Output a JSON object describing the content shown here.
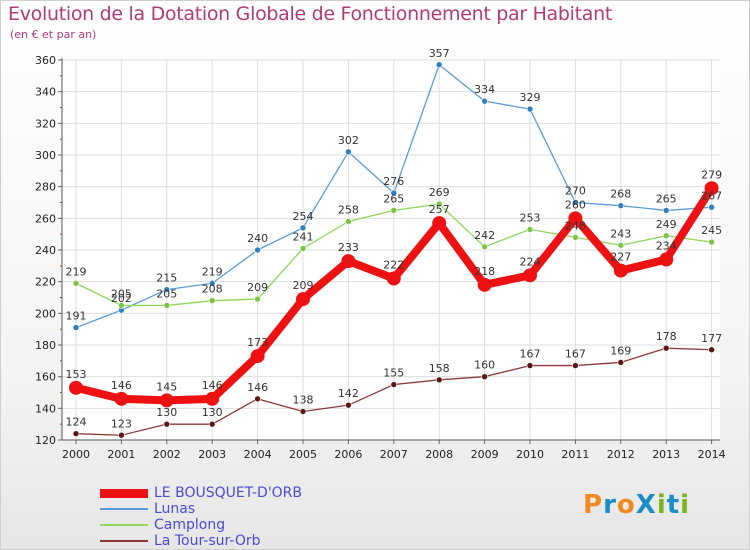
{
  "title": "Evolution de la Dotation Globale de Fonctionnement par Habitant",
  "subtitle": "(en € et par an)",
  "logo": {
    "text": "ProXiti",
    "letters": [
      "P",
      "r",
      "o",
      "X",
      "i",
      "t",
      "i"
    ],
    "colors": [
      "#f08a1e",
      "#1a8cc8",
      "#f08a1e",
      "#1a8cc8",
      "#7ab51d",
      "#1a8cc8",
      "#7ab51d"
    ]
  },
  "chart_data": {
    "type": "line",
    "title": "Evolution de la Dotation Globale de Fonctionnement par Habitant",
    "subtitle": "(en € et par an)",
    "xlabel": "",
    "ylabel": "",
    "x": [
      "2000",
      "2001",
      "2002",
      "2003",
      "2004",
      "2005",
      "2006",
      "2007",
      "2008",
      "2009",
      "2010",
      "2011",
      "2012",
      "2013",
      "2014"
    ],
    "ylim": [
      120,
      360
    ],
    "yticks": [
      120,
      140,
      160,
      180,
      200,
      220,
      240,
      260,
      280,
      300,
      320,
      340,
      360
    ],
    "grid": true,
    "legend_position": "bottom-left",
    "series": [
      {
        "name": "Lunas",
        "color": "#5b9bd5",
        "point_color": "#2f7fc1",
        "values": [
          191,
          202,
          215,
          219,
          240,
          254,
          302,
          276,
          357,
          334,
          329,
          270,
          268,
          265,
          267
        ],
        "labels": [
          "191",
          "202",
          "215",
          "219",
          "240",
          "254",
          "302",
          "276",
          "357",
          "334",
          "329",
          "270",
          "268",
          "265",
          "267"
        ]
      },
      {
        "name": "Camplong",
        "color": "#8ed65a",
        "point_color": "#7cc442",
        "values": [
          219,
          205,
          205,
          208,
          209,
          241,
          258,
          265,
          269,
          242,
          253,
          248,
          243,
          249,
          245
        ],
        "labels": [
          "219",
          "205",
          "205",
          "208",
          "209",
          "241",
          "258",
          "265",
          "269",
          "242",
          "253",
          "248",
          "243",
          "249",
          "245"
        ]
      },
      {
        "name": "La Tour-sur-Orb",
        "color": "#8b3a3a",
        "point_color": "#5a1515",
        "values": [
          124,
          123,
          130,
          130,
          146,
          138,
          142,
          155,
          158,
          160,
          167,
          167,
          169,
          178,
          177
        ],
        "labels": [
          "124",
          "123",
          "130",
          "130",
          "146",
          "138",
          "142",
          "155",
          "158",
          "160",
          "167",
          "167",
          "169",
          "178",
          "177"
        ]
      },
      {
        "name": "LE BOUSQUET-D'ORB",
        "color": "#ee1111",
        "point_color": "#ee1111",
        "values": [
          153,
          146,
          145,
          146,
          173,
          209,
          233,
          222,
          257,
          218,
          224,
          260,
          227,
          234,
          279
        ],
        "labels": [
          "153",
          "146",
          "145",
          "146",
          "173",
          "209",
          "233",
          "222",
          "257",
          "218",
          "224",
          "260",
          "227",
          "234",
          "279"
        ]
      }
    ],
    "legend": [
      "LE BOUSQUET-D'ORB",
      "Lunas",
      "Camplong",
      "La Tour-sur-Orb"
    ]
  }
}
